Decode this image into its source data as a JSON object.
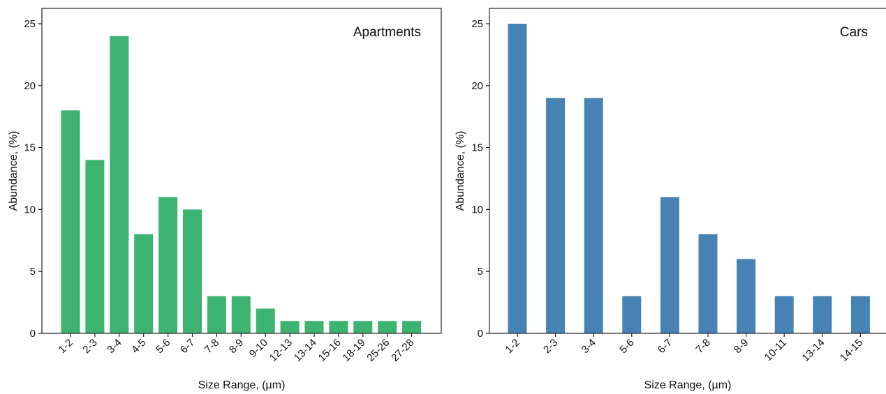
{
  "chart_data": [
    {
      "type": "bar",
      "title": "Apartments",
      "xlabel": "Size Range, (µm)",
      "ylabel": "Abundance, (%)",
      "ylim": [
        0,
        25
      ],
      "yticks": [
        0,
        5,
        10,
        15,
        20,
        25
      ],
      "categories": [
        "1-2",
        "2-3",
        "3-4",
        "4-5",
        "5-6",
        "6-7",
        "7-8",
        "8-9",
        "9-10",
        "12-13",
        "13-14",
        "15-16",
        "18-19",
        "25-26",
        "27-28"
      ],
      "values": [
        18,
        14,
        24,
        8,
        11,
        10,
        3,
        3,
        2,
        1,
        1,
        1,
        1,
        1,
        1
      ],
      "color": "#3cb371",
      "grid": false,
      "legend": "none"
    },
    {
      "type": "bar",
      "title": "Cars",
      "xlabel": "Size Range, (µm)",
      "ylabel": "Abundance, (%)",
      "ylim": [
        0,
        25
      ],
      "yticks": [
        0,
        5,
        10,
        15,
        20,
        25
      ],
      "categories": [
        "1-2",
        "2-3",
        "3-4",
        "5-6",
        "6-7",
        "7-8",
        "8-9",
        "10-11",
        "13-14",
        "14-15"
      ],
      "values": [
        25,
        19,
        19,
        3,
        11,
        8,
        6,
        3,
        3,
        3
      ],
      "color": "#4682b4",
      "grid": false,
      "legend": "none"
    }
  ]
}
